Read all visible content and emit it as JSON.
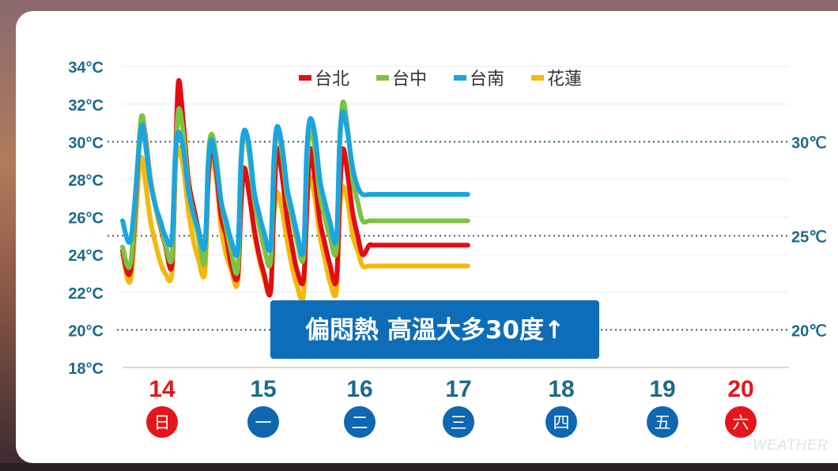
{
  "chart_data": {
    "type": "line",
    "y_unit": "°C",
    "ylim": [
      18,
      34
    ],
    "y_ticks": [
      "34°C",
      "32°C",
      "30°C",
      "28°C",
      "26°C",
      "24°C",
      "22°C",
      "20°C",
      "18°C"
    ],
    "y_tick_values": [
      34,
      32,
      30,
      28,
      26,
      24,
      22,
      20,
      18
    ],
    "reference_lines": [
      {
        "value": 30,
        "label": "30℃"
      },
      {
        "value": 25,
        "label": "25℃"
      },
      {
        "value": 20,
        "label": "20℃"
      }
    ],
    "days": [
      {
        "date": "14",
        "weekday": "日",
        "weekend": true
      },
      {
        "date": "15",
        "weekday": "一",
        "weekend": false
      },
      {
        "date": "16",
        "weekday": "二",
        "weekend": false
      },
      {
        "date": "17",
        "weekday": "三",
        "weekend": false
      },
      {
        "date": "18",
        "weekday": "四",
        "weekend": false
      },
      {
        "date": "19",
        "weekday": "五",
        "weekend": false
      },
      {
        "date": "20",
        "weekday": "六",
        "weekend": true
      }
    ],
    "x": [
      0,
      0.5,
      1.0,
      1.2,
      1.4,
      1.7,
      2.0,
      2.3,
      2.6,
      3.0,
      3.2,
      3.4,
      3.7,
      4.0,
      4.3,
      4.6,
      5.0,
      5.2,
      5.4,
      5.7,
      6.0,
      6.3,
      6.6,
      7.0,
      7.2,
      7.4,
      7.7,
      8.0,
      8.3,
      8.6,
      9.0,
      9.2,
      9.4,
      9.7,
      10.0,
      10.3,
      10.6,
      11.0,
      11.2,
      11.4,
      11.7,
      12.0,
      12.3,
      12.6,
      13.0,
      13.2,
      13.4,
      13.7,
      14.0,
      14.3,
      14.6,
      15.0,
      15.2,
      15.4,
      15.7,
      16.0,
      16.3,
      16.6,
      17.0,
      17.2,
      17.4,
      17.7,
      18.0,
      18.3,
      18.6,
      19.0,
      19.2,
      19.4,
      19.7,
      20.0,
      20.3,
      20.6,
      21.0
    ],
    "series": [
      {
        "name": "台北",
        "color": "#e00d12",
        "values": [
          24.2,
          23.2,
          29.8,
          31.2,
          30.2,
          28.0,
          26.6,
          25.5,
          24.5,
          23.4,
          28.5,
          33.2,
          31.0,
          28.0,
          26.6,
          25.4,
          23.8,
          27.8,
          29.8,
          28.5,
          26.0,
          25.0,
          23.5,
          22.8,
          26.5,
          28.6,
          27.2,
          25.4,
          24.0,
          23.0,
          22.0,
          26.5,
          29.6,
          28.2,
          26.0,
          24.5,
          23.2,
          22.6,
          26.2,
          29.6,
          28.0,
          25.8,
          24.6,
          23.5,
          22.6,
          27.0,
          29.6,
          28.2,
          26.2,
          25.0,
          24.0,
          24.5,
          24.5,
          24.5,
          24.5,
          24.5,
          24.5,
          24.5,
          24.5,
          24.5,
          24.5,
          24.5,
          24.5,
          24.5,
          24.5,
          24.5,
          24.5,
          24.5,
          24.5,
          24.5,
          24.5,
          24.5,
          24.5
        ]
      },
      {
        "name": "台中",
        "color": "#7dc242",
        "values": [
          24.4,
          23.6,
          30.0,
          31.4,
          30.0,
          28.0,
          26.6,
          25.6,
          24.6,
          23.8,
          28.5,
          31.7,
          30.4,
          27.6,
          26.2,
          25.0,
          23.6,
          28.8,
          30.4,
          29.2,
          26.8,
          25.5,
          24.2,
          23.2,
          28.5,
          30.6,
          29.4,
          27.0,
          25.6,
          24.4,
          23.6,
          28.5,
          30.7,
          29.4,
          27.2,
          26.0,
          24.8,
          23.8,
          28.5,
          30.8,
          29.6,
          27.2,
          26.0,
          25.0,
          24.2,
          29.5,
          32.1,
          30.6,
          28.0,
          26.8,
          25.8,
          25.8,
          25.8,
          25.8,
          25.8,
          25.8,
          25.8,
          25.8,
          25.8,
          25.8,
          25.8,
          25.8,
          25.8,
          25.8,
          25.8,
          25.8,
          25.8,
          25.8,
          25.8,
          25.8,
          25.8,
          25.8,
          25.8
        ]
      },
      {
        "name": "台南",
        "color": "#1aa5e0",
        "values": [
          25.8,
          24.8,
          29.6,
          30.9,
          29.8,
          27.8,
          26.6,
          25.8,
          25.0,
          24.8,
          29.2,
          30.5,
          29.6,
          27.4,
          26.2,
          25.4,
          24.4,
          28.6,
          30.1,
          28.8,
          26.8,
          25.8,
          24.8,
          24.2,
          29.0,
          30.6,
          29.8,
          27.4,
          26.2,
          25.2,
          24.4,
          29.0,
          30.8,
          29.8,
          27.6,
          26.4,
          25.2,
          24.2,
          29.4,
          31.2,
          30.4,
          28.0,
          26.8,
          25.8,
          24.8,
          30.0,
          31.6,
          30.4,
          28.6,
          27.6,
          27.2,
          27.2,
          27.2,
          27.2,
          27.2,
          27.2,
          27.2,
          27.2,
          27.2,
          27.2,
          27.2,
          27.2,
          27.2,
          27.2,
          27.2,
          27.2,
          27.2,
          27.2,
          27.2,
          27.2,
          27.2,
          27.2,
          27.2
        ]
      },
      {
        "name": "花蓮",
        "color": "#f5b80c",
        "values": [
          24.0,
          22.7,
          28.4,
          29.1,
          27.8,
          25.8,
          24.6,
          23.6,
          23.0,
          23.0,
          28.2,
          29.7,
          28.6,
          26.4,
          24.8,
          23.8,
          23.0,
          27.8,
          29.0,
          28.0,
          25.4,
          24.0,
          23.2,
          22.5,
          27.2,
          28.4,
          27.4,
          25.2,
          23.8,
          22.8,
          22.0,
          26.0,
          27.3,
          26.4,
          24.8,
          23.4,
          22.4,
          21.8,
          26.6,
          28.1,
          27.0,
          25.0,
          23.8,
          22.6,
          22.0,
          26.2,
          27.6,
          26.8,
          25.0,
          24.2,
          23.4,
          23.4,
          23.4,
          23.4,
          23.4,
          23.4,
          23.4,
          23.4,
          23.4,
          23.4,
          23.4,
          23.4,
          23.4,
          23.4,
          23.4,
          23.4,
          23.4,
          23.4,
          23.4,
          23.4,
          23.4,
          23.4,
          23.4
        ]
      }
    ],
    "caption": "偏悶熱  高溫大多30度↑",
    "colors": {
      "axis_text": "#1c6a8a",
      "weekend": "#e4161b",
      "weekday_circle": "#0e67b0",
      "caption_bg": "#0e6db8"
    }
  },
  "watermark": "WEATHER"
}
